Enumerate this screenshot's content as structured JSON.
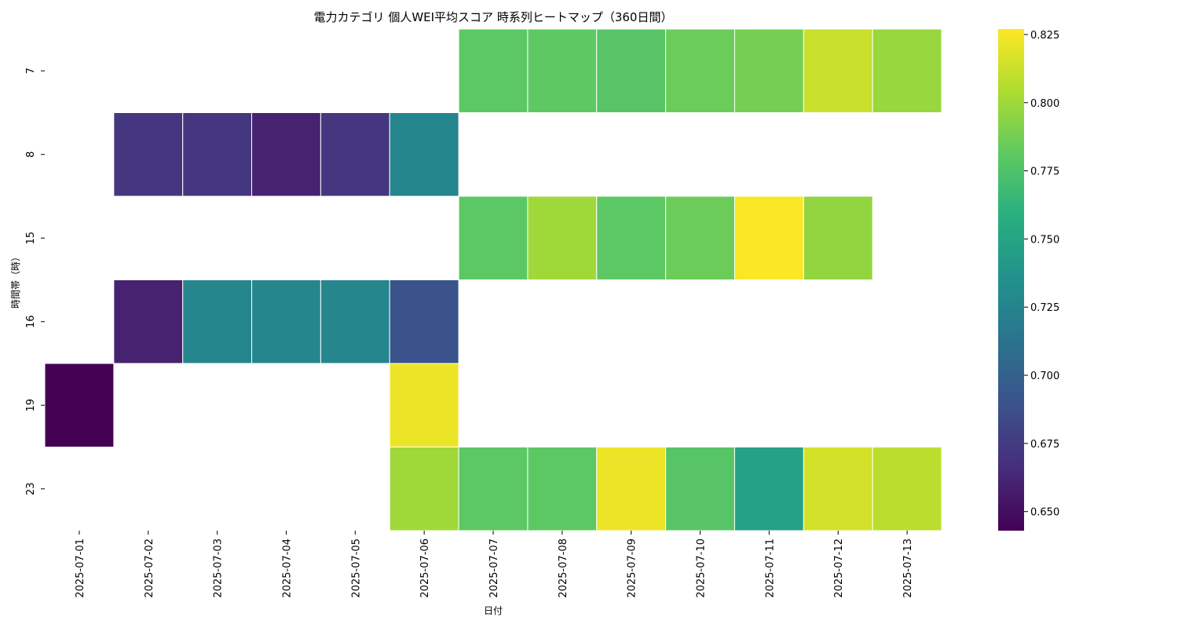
{
  "chart_data": {
    "type": "heatmap",
    "title": "電力カテゴリ 個人WEI平均スコア 時系列ヒートマップ（360日間）",
    "xlabel": "日付",
    "ylabel": "時間帯（時）",
    "colormap": "viridis",
    "x": [
      "2025-07-01",
      "2025-07-02",
      "2025-07-03",
      "2025-07-04",
      "2025-07-05",
      "2025-07-06",
      "2025-07-07",
      "2025-07-08",
      "2025-07-09",
      "2025-07-10",
      "2025-07-11",
      "2025-07-12",
      "2025-07-13"
    ],
    "y": [
      "7",
      "8",
      "15",
      "16",
      "19",
      "23"
    ],
    "values": [
      [
        null,
        null,
        null,
        null,
        null,
        null,
        0.78,
        0.781,
        0.778,
        0.785,
        0.788,
        0.812,
        0.798
      ],
      [
        null,
        0.672,
        0.672,
        0.66,
        0.672,
        0.726,
        null,
        null,
        null,
        null,
        null,
        null,
        null
      ],
      [
        null,
        null,
        null,
        null,
        null,
        null,
        0.78,
        0.8,
        0.78,
        0.785,
        0.826,
        0.796,
        null
      ],
      [
        null,
        0.66,
        0.727,
        0.727,
        0.727,
        0.69,
        null,
        null,
        null,
        null,
        null,
        null,
        null
      ],
      [
        0.643,
        null,
        null,
        null,
        null,
        0.822,
        null,
        null,
        null,
        null,
        null,
        null,
        null
      ],
      [
        null,
        null,
        null,
        null,
        null,
        0.8,
        0.78,
        0.78,
        0.822,
        0.778,
        0.748,
        0.815,
        0.808
      ]
    ],
    "colorbar": {
      "range": [
        0.643,
        0.827
      ],
      "ticks": [
        0.65,
        0.675,
        0.7,
        0.725,
        0.75,
        0.775,
        0.8,
        0.825
      ],
      "tick_labels": [
        "0.650",
        "0.675",
        "0.700",
        "0.725",
        "0.750",
        "0.775",
        "0.800",
        "0.825"
      ]
    }
  }
}
